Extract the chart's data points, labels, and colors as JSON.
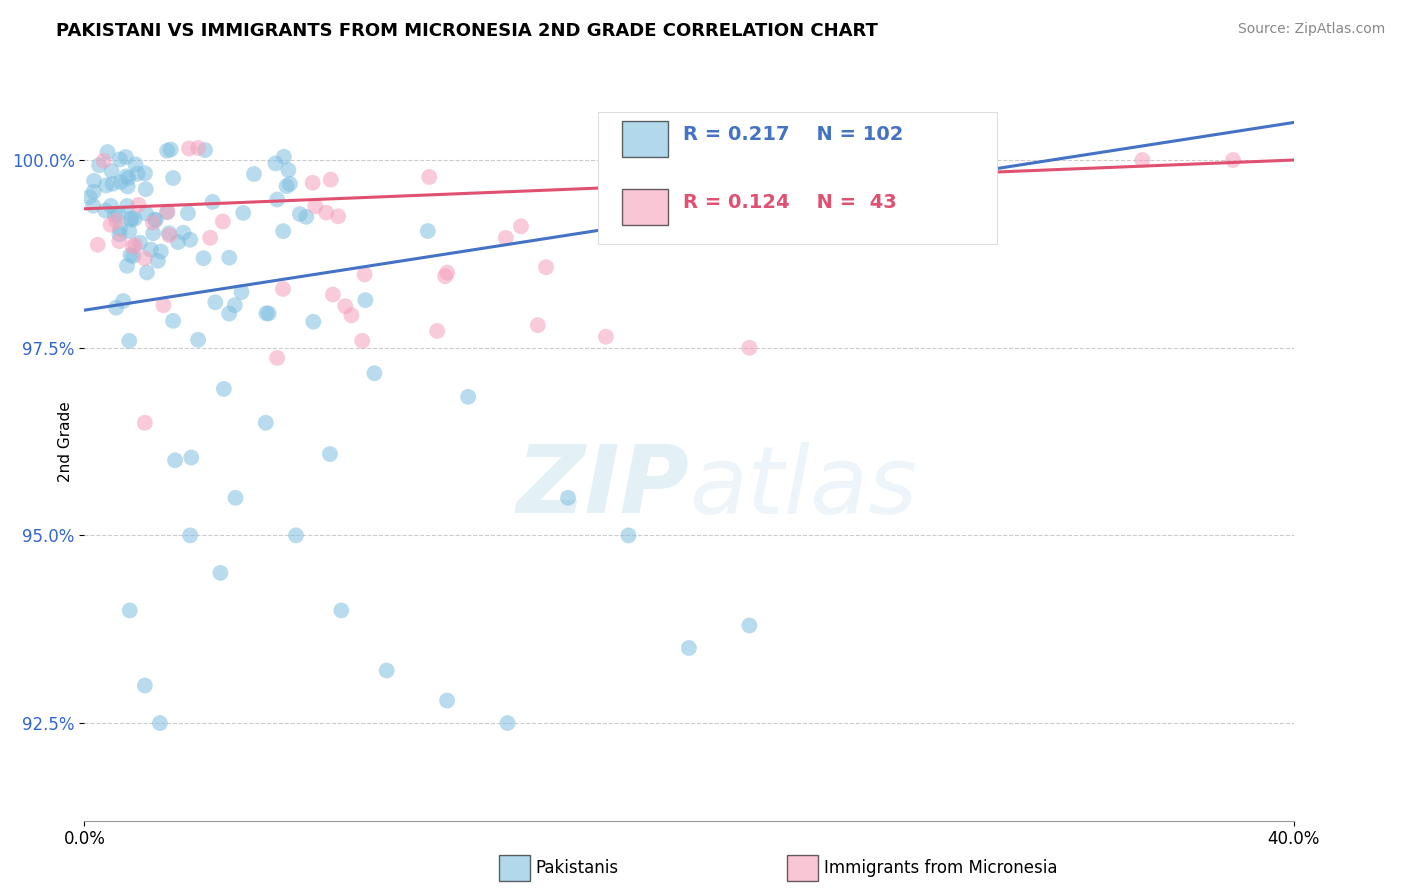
{
  "title": "PAKISTANI VS IMMIGRANTS FROM MICRONESIA 2ND GRADE CORRELATION CHART",
  "source": "Source: ZipAtlas.com",
  "ylabel": "2nd Grade",
  "ytick_labels": [
    "100.0%",
    "97.5%",
    "95.0%",
    "92.5%"
  ],
  "ytick_values": [
    100.0,
    97.5,
    95.0,
    92.5
  ],
  "xmin": 0.0,
  "xmax": 40.0,
  "ymin": 91.2,
  "ymax": 101.3,
  "blue_R": 0.217,
  "blue_N": 102,
  "pink_R": 0.124,
  "pink_N": 43,
  "blue_color": "#7fbfdf",
  "pink_color": "#f5a0bb",
  "blue_line_color": "#4472c4",
  "pink_line_color": "#e05070",
  "legend_blue_label": "Pakistanis",
  "legend_pink_label": "Immigrants from Micronesia",
  "watermark": "ZIPatlas",
  "blue_line_x0": 0.0,
  "blue_line_y0": 98.0,
  "blue_line_x1": 40.0,
  "blue_line_y1": 100.5,
  "pink_line_x0": 0.0,
  "pink_line_y0": 99.35,
  "pink_line_x1": 40.0,
  "pink_line_y1": 100.0
}
